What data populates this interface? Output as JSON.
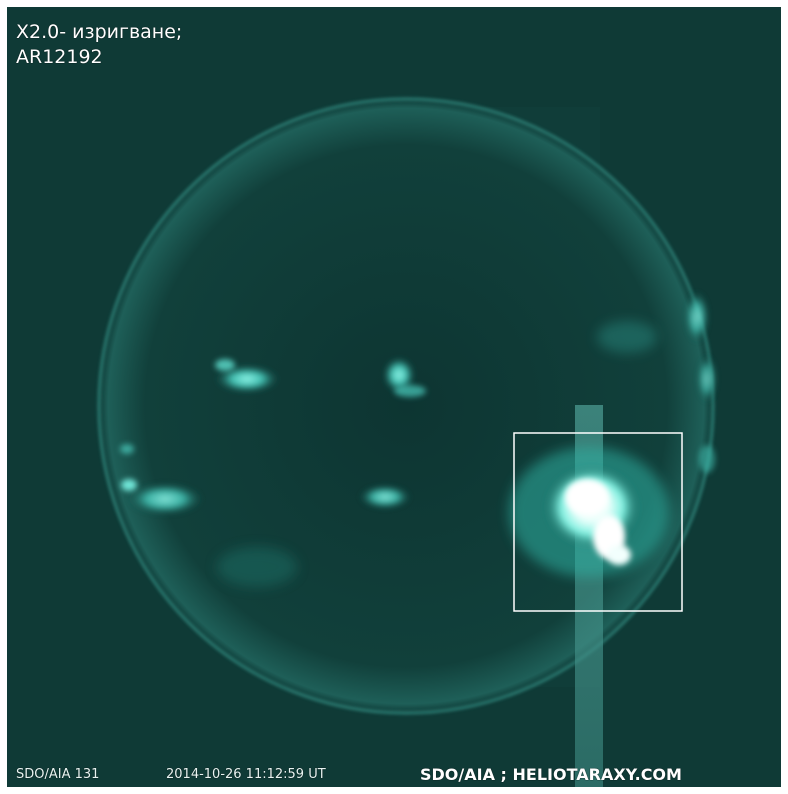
{
  "image": {
    "title_line1": "X2.0- изригване;",
    "title_line2": "AR12192",
    "instrument": "SDO/AIA  131",
    "timestamp": "2014-10-26  11:12:59  UT",
    "credit": "SDO/AIA ; HELIOTARAXY.COM"
  },
  "colors": {
    "background": "#0f3a36",
    "limb": "#2b7a72",
    "active_region": "#5fe0d0",
    "flare_core": "#ffffff",
    "highlight_box": "#ffffff"
  }
}
